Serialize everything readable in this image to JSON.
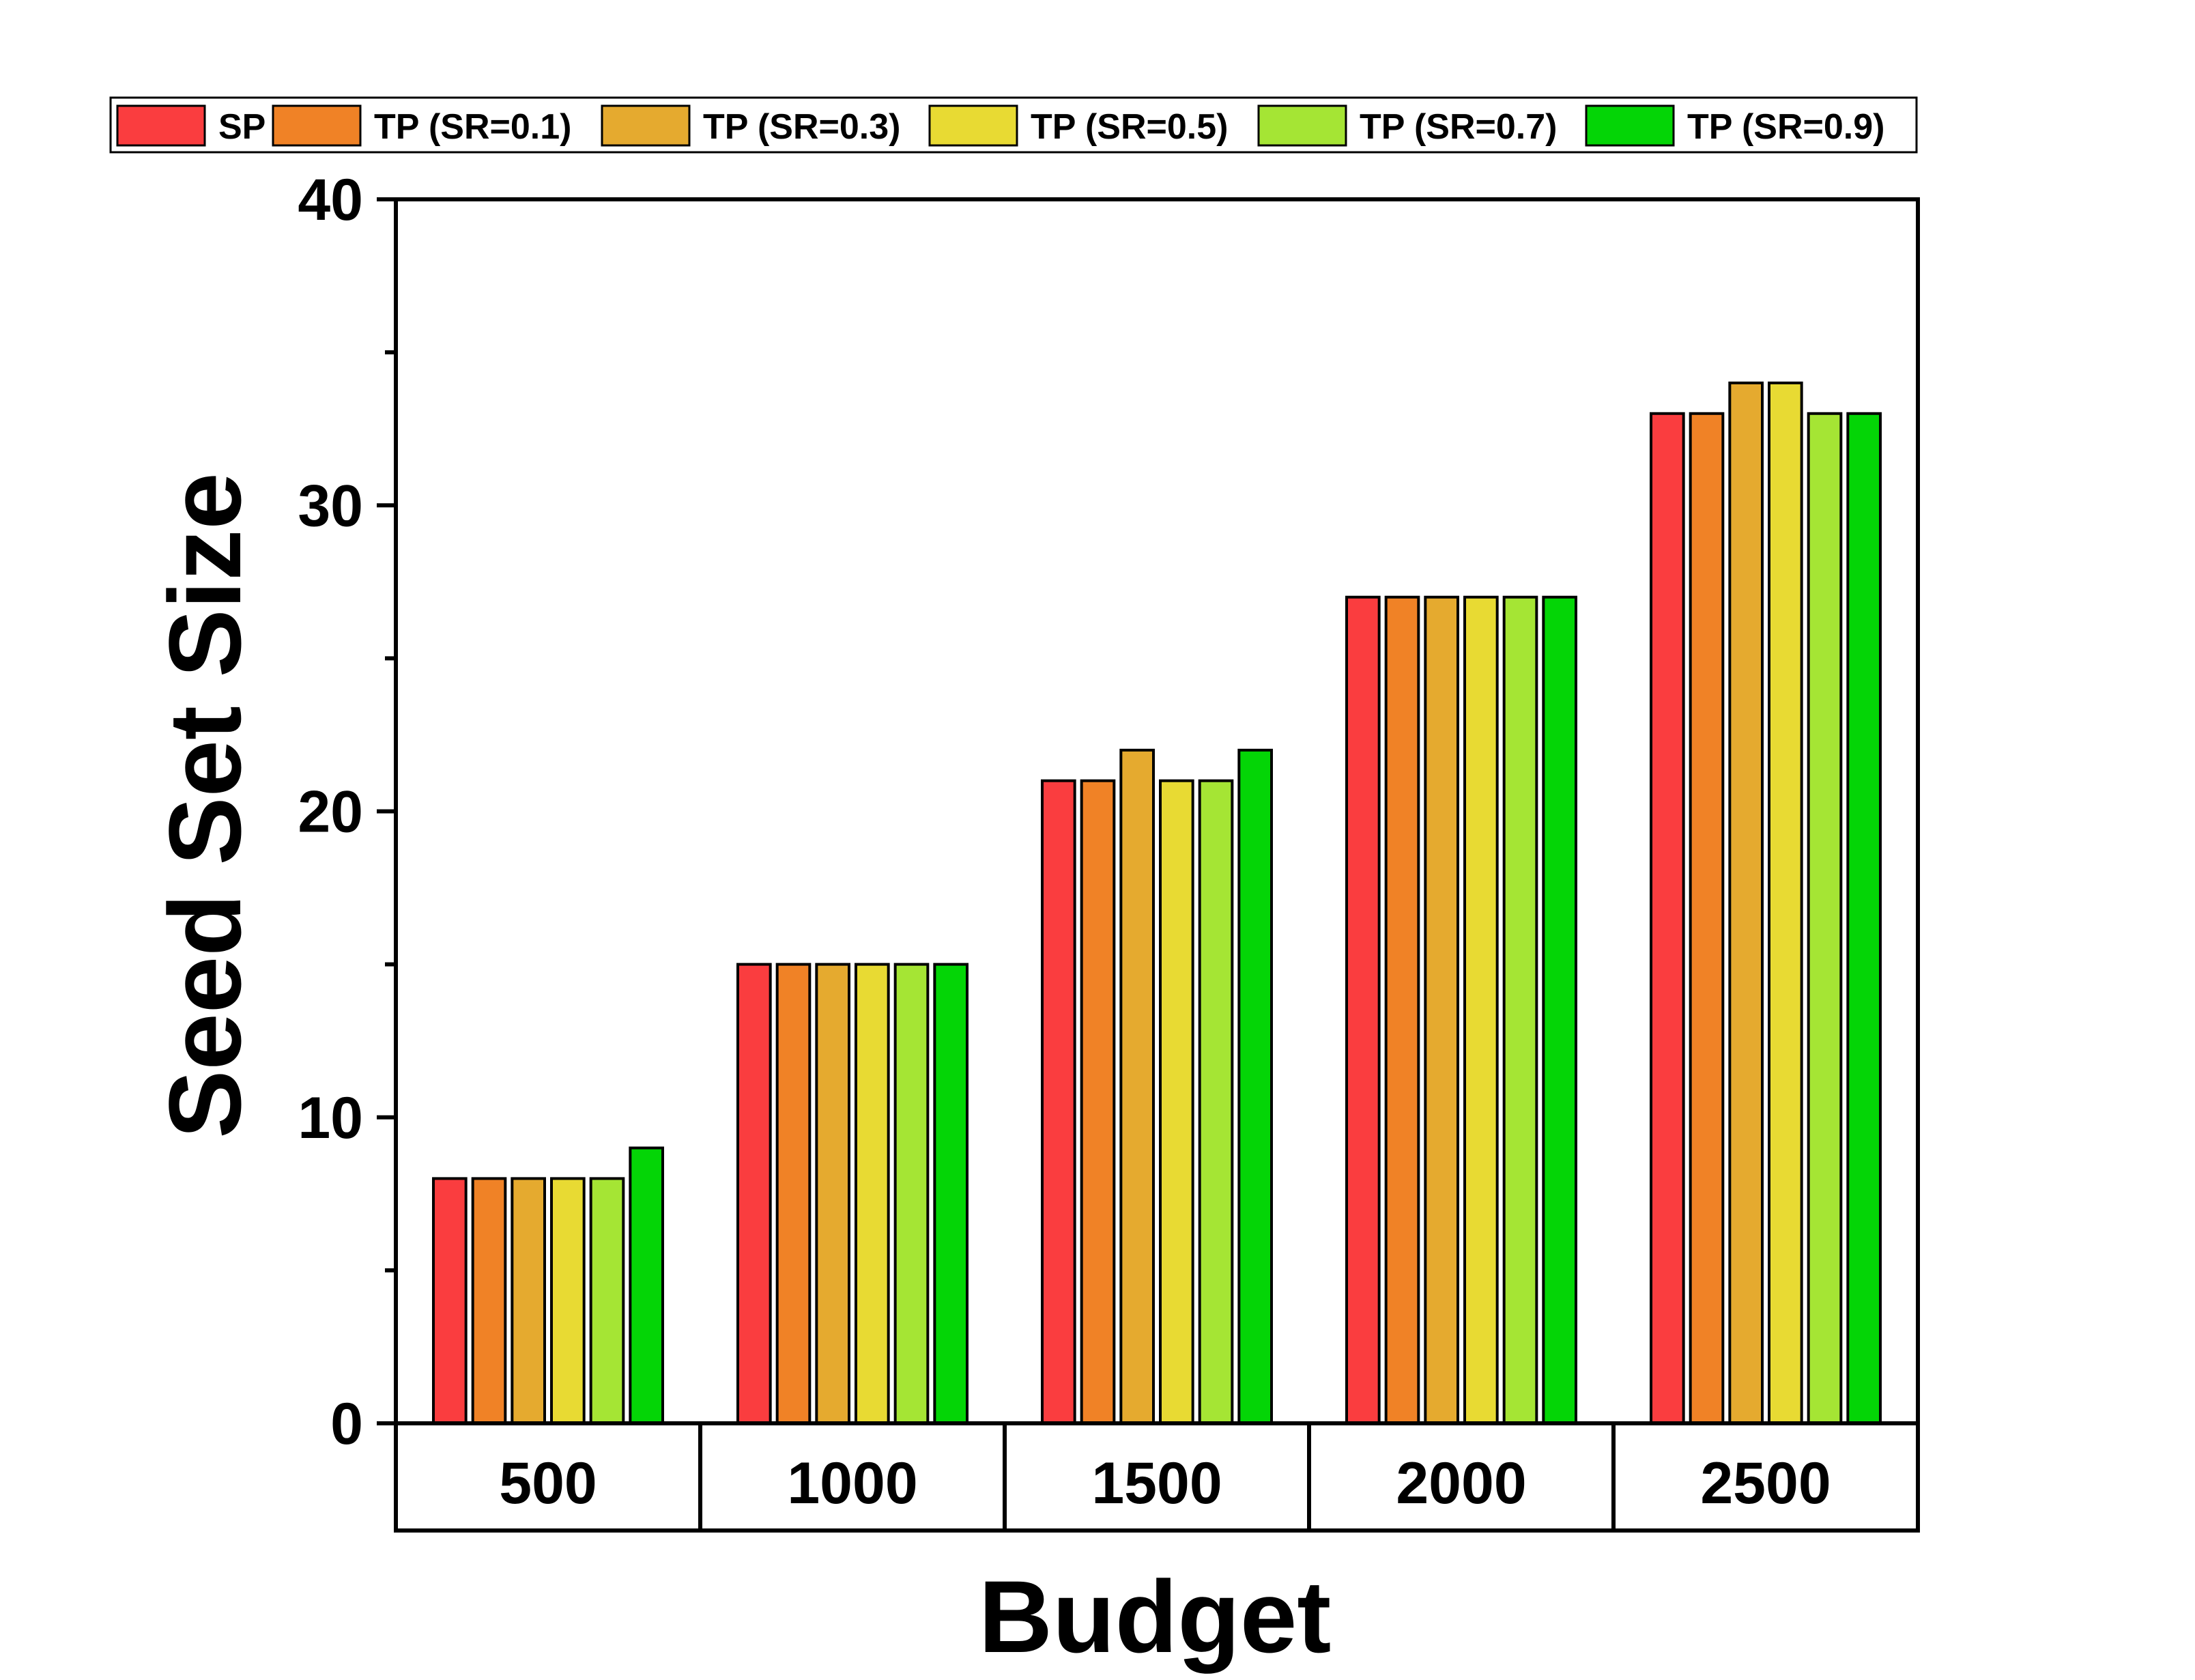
{
  "chart_data": {
    "type": "bar",
    "title": "",
    "xlabel": "Budget",
    "ylabel": "Seed Set Size",
    "categories": [
      "500",
      "1000",
      "1500",
      "2000",
      "2500"
    ],
    "ylim": [
      0,
      40
    ],
    "yticks": [
      "0",
      "10",
      "20",
      "30",
      "40"
    ],
    "legend_position": "top",
    "series": [
      {
        "name": "SP",
        "color": "#fa3d3f",
        "values": [
          8,
          15,
          21,
          27,
          33
        ]
      },
      {
        "name": "TP (SR=0.1)",
        "color": "#f08226",
        "values": [
          8,
          15,
          21,
          27,
          33
        ]
      },
      {
        "name": "TP (SR=0.3)",
        "color": "#e5aa2f",
        "values": [
          8,
          15,
          22,
          27,
          34
        ]
      },
      {
        "name": "TP (SR=0.5)",
        "color": "#e8da33",
        "values": [
          8,
          15,
          21,
          27,
          34
        ]
      },
      {
        "name": "TP (SR=0.7)",
        "color": "#a5e534",
        "values": [
          8,
          15,
          21,
          27,
          33
        ]
      },
      {
        "name": "TP (SR=0.9)",
        "color": "#04d506",
        "values": [
          9,
          15,
          22,
          27,
          33
        ]
      }
    ]
  }
}
